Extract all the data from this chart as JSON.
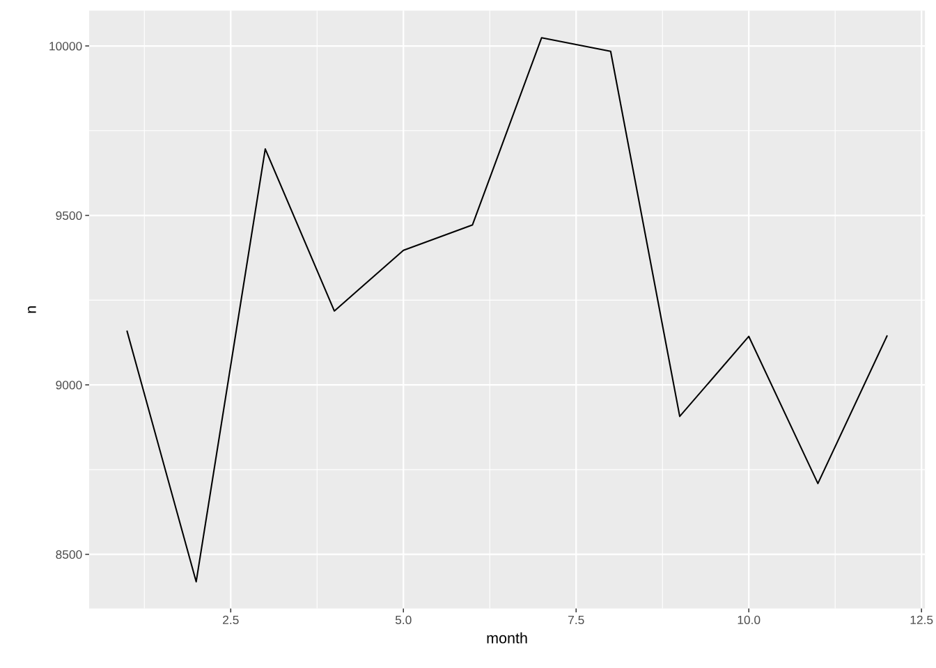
{
  "chart_data": {
    "type": "line",
    "xlabel": "month",
    "ylabel": "n",
    "x": [
      1,
      2,
      3,
      4,
      5,
      6,
      7,
      8,
      9,
      10,
      11,
      12
    ],
    "series": [
      {
        "color": "#000000",
        "values": [
          9158,
          8419,
          9696,
          9218,
          9397,
          9472,
          10024,
          9984,
          8907,
          9143,
          8709,
          9144
        ]
      }
    ],
    "xlim": [
      0.45,
      12.55
    ],
    "xticks": [
      {
        "value": 2.5,
        "label": "2.5"
      },
      {
        "value": 5.0,
        "label": "5.0"
      },
      {
        "value": 7.5,
        "label": "7.5"
      },
      {
        "value": 10.0,
        "label": "10.0"
      },
      {
        "value": 12.5,
        "label": "12.5"
      }
    ],
    "ylim": [
      8340,
      10104
    ],
    "yticks": [
      8500,
      9000,
      9500,
      10000
    ],
    "grid": true,
    "line_style": "solid"
  }
}
